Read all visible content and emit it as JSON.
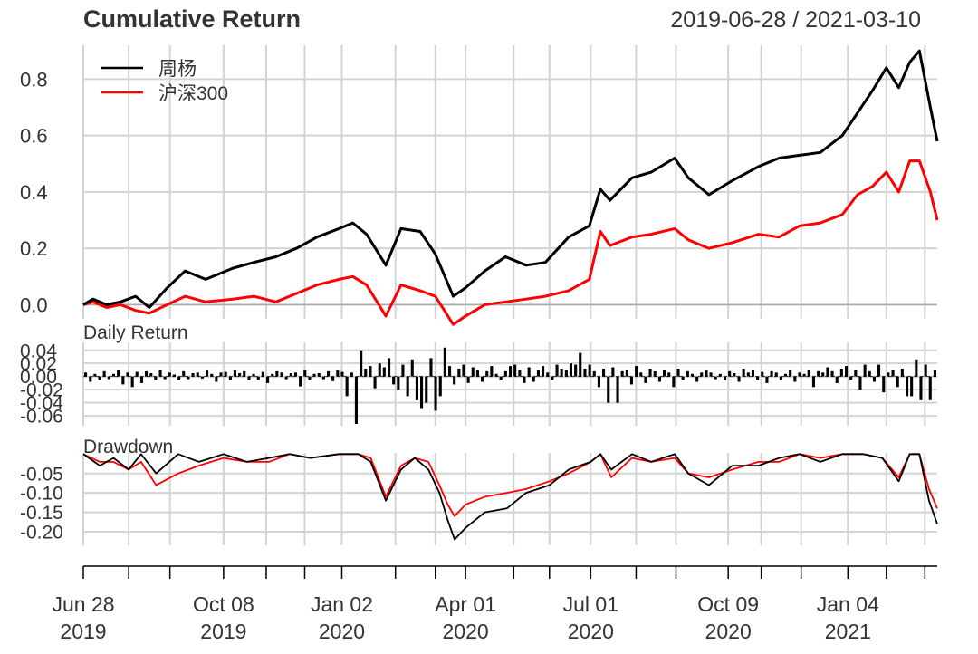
{
  "header": {
    "title": "Cumulative Return",
    "date_range": "2019-06-28 / 2021-03-10"
  },
  "colors": {
    "fund": "#000000",
    "benchmark": "#ff0000",
    "grid": "#d3d3d3",
    "text": "#333333"
  },
  "chart_data": [
    {
      "type": "line",
      "panel": "cumulative",
      "ylim": [
        -0.05,
        0.92
      ],
      "yticks": [
        "0.0",
        "0.2",
        "0.4",
        "0.6",
        "0.8"
      ],
      "ytick_values": [
        0,
        0.2,
        0.4,
        0.6,
        0.8
      ],
      "legend_placement": "top-left",
      "grid": true,
      "series": [
        {
          "name": "周杨",
          "x": [
            "2019-06-28",
            "2019-07-05",
            "2019-07-15",
            "2019-07-25",
            "2019-08-05",
            "2019-08-15",
            "2019-08-28",
            "2019-09-10",
            "2019-09-25",
            "2019-10-15",
            "2019-10-30",
            "2019-11-15",
            "2019-11-30",
            "2019-12-15",
            "2019-12-31",
            "2020-01-10",
            "2020-01-20",
            "2020-02-03",
            "2020-02-14",
            "2020-02-28",
            "2020-03-10",
            "2020-03-23",
            "2020-04-01",
            "2020-04-15",
            "2020-04-30",
            "2020-05-15",
            "2020-05-29",
            "2020-06-15",
            "2020-06-30",
            "2020-07-08",
            "2020-07-15",
            "2020-07-31",
            "2020-08-14",
            "2020-08-31",
            "2020-09-10",
            "2020-09-25",
            "2020-10-12",
            "2020-10-31",
            "2020-11-15",
            "2020-11-30",
            "2020-12-15",
            "2020-12-31",
            "2021-01-11",
            "2021-01-22",
            "2021-02-01",
            "2021-02-10",
            "2021-02-18",
            "2021-02-25",
            "2021-03-05",
            "2021-03-10"
          ],
          "values": [
            0.0,
            0.02,
            0.0,
            0.01,
            0.03,
            -0.01,
            0.06,
            0.12,
            0.09,
            0.13,
            0.15,
            0.17,
            0.2,
            0.24,
            0.27,
            0.29,
            0.25,
            0.14,
            0.27,
            0.26,
            0.18,
            0.03,
            0.06,
            0.12,
            0.17,
            0.14,
            0.15,
            0.24,
            0.28,
            0.41,
            0.37,
            0.45,
            0.47,
            0.52,
            0.45,
            0.39,
            0.44,
            0.49,
            0.52,
            0.53,
            0.54,
            0.6,
            0.68,
            0.76,
            0.84,
            0.77,
            0.86,
            0.9,
            0.7,
            0.58
          ]
        },
        {
          "name": "沪深300",
          "x": [
            "2019-06-28",
            "2019-07-05",
            "2019-07-15",
            "2019-07-25",
            "2019-08-05",
            "2019-08-15",
            "2019-08-28",
            "2019-09-10",
            "2019-09-25",
            "2019-10-15",
            "2019-10-30",
            "2019-11-15",
            "2019-11-30",
            "2019-12-15",
            "2019-12-31",
            "2020-01-10",
            "2020-01-20",
            "2020-02-03",
            "2020-02-14",
            "2020-02-28",
            "2020-03-10",
            "2020-03-23",
            "2020-04-01",
            "2020-04-15",
            "2020-04-30",
            "2020-05-15",
            "2020-05-29",
            "2020-06-15",
            "2020-06-30",
            "2020-07-08",
            "2020-07-15",
            "2020-07-31",
            "2020-08-14",
            "2020-08-31",
            "2020-09-10",
            "2020-09-25",
            "2020-10-12",
            "2020-10-31",
            "2020-11-15",
            "2020-11-30",
            "2020-12-15",
            "2020-12-31",
            "2021-01-11",
            "2021-01-22",
            "2021-02-01",
            "2021-02-10",
            "2021-02-18",
            "2021-02-25",
            "2021-03-05",
            "2021-03-10"
          ],
          "values": [
            0.0,
            0.01,
            -0.01,
            0.0,
            -0.02,
            -0.03,
            0.0,
            0.03,
            0.01,
            0.02,
            0.03,
            0.01,
            0.04,
            0.07,
            0.09,
            0.1,
            0.07,
            -0.04,
            0.07,
            0.05,
            0.03,
            -0.07,
            -0.04,
            0.0,
            0.01,
            0.02,
            0.03,
            0.05,
            0.09,
            0.26,
            0.21,
            0.24,
            0.25,
            0.27,
            0.23,
            0.2,
            0.22,
            0.25,
            0.24,
            0.28,
            0.29,
            0.32,
            0.39,
            0.42,
            0.47,
            0.4,
            0.51,
            0.51,
            0.4,
            0.3
          ]
        }
      ]
    },
    {
      "type": "bar",
      "panel": "daily_return",
      "title": "Daily Return",
      "ylim": [
        -0.075,
        0.052
      ],
      "yticks": [
        "0.04",
        "0.02",
        "0.00",
        "-0.02",
        "-0.04",
        "-0.06"
      ],
      "ytick_values": [
        0.04,
        0.02,
        0.0,
        -0.02,
        -0.04,
        -0.06
      ],
      "series": [
        {
          "name": "周杨",
          "values": [
            0.006,
            -0.008,
            0.004,
            -0.006,
            0.008,
            -0.004,
            0.004,
            0.01,
            -0.012,
            0.006,
            -0.016,
            0.007,
            -0.01,
            0.008,
            0.005,
            -0.006,
            0.01,
            -0.004,
            0.006,
            0.003,
            -0.006,
            0.008,
            -0.004,
            0.005,
            0.006,
            -0.003,
            0.009,
            0.004,
            -0.008,
            0.006,
            0.007,
            -0.006,
            0.01,
            0.005,
            0.008,
            -0.006,
            0.004,
            -0.005,
            0.007,
            -0.01,
            0.004,
            0.008,
            0.006,
            -0.004,
            0.005,
            0.006,
            -0.015,
            0.01,
            -0.006,
            0.004,
            0.005,
            -0.004,
            0.008,
            -0.007,
            0.009,
            0.007,
            -0.03,
            0.006,
            -0.072,
            0.04,
            0.012,
            0.016,
            -0.018,
            0.02,
            0.014,
            0.028,
            -0.012,
            -0.02,
            0.018,
            -0.03,
            0.026,
            -0.036,
            -0.048,
            -0.04,
            0.028,
            -0.052,
            -0.03,
            0.044,
            0.016,
            -0.012,
            0.012,
            0.018,
            -0.01,
            0.014,
            0.01,
            -0.008,
            0.008,
            0.016,
            0.004,
            -0.006,
            0.008,
            0.016,
            0.018,
            0.01,
            -0.01,
            0.014,
            -0.008,
            0.009,
            0.016,
            0.006,
            -0.006,
            0.018,
            0.012,
            0.01,
            0.02,
            0.018,
            0.036,
            0.012,
            0.018,
            0.008,
            -0.016,
            0.012,
            -0.04,
            0.014,
            -0.04,
            0.008,
            0.01,
            -0.012,
            0.016,
            0.006,
            -0.01,
            0.012,
            0.008,
            -0.008,
            0.01,
            0.006,
            -0.016,
            0.012,
            -0.006,
            0.008,
            0.004,
            -0.008,
            0.006,
            0.009,
            0.006,
            -0.004,
            0.004,
            -0.006,
            0.008,
            0.005,
            -0.008,
            0.012,
            0.006,
            0.01,
            -0.006,
            0.007,
            -0.01,
            0.008,
            0.006,
            -0.006,
            0.004,
            0.01,
            -0.008,
            0.006,
            0.004,
            0.01,
            -0.016,
            0.008,
            0.006,
            0.014,
            0.008,
            -0.01,
            0.012,
            0.016,
            -0.006,
            0.01,
            -0.02,
            0.018,
            0.008,
            -0.008,
            0.018,
            -0.024,
            0.006,
            0.01,
            -0.016,
            0.012,
            -0.03,
            -0.03,
            0.026,
            -0.036,
            0.018,
            -0.036,
            0.01
          ]
        }
      ]
    },
    {
      "type": "line",
      "panel": "drawdown",
      "title": "Drawdown",
      "ylim": [
        -0.235,
        0.003
      ],
      "yticks": [
        "-0.05",
        "-0.10",
        "-0.15",
        "-0.20"
      ],
      "ytick_values": [
        -0.05,
        -0.1,
        -0.15,
        -0.2
      ],
      "series": [
        {
          "name": "周杨",
          "x": [
            "2019-06-28",
            "2019-07-10",
            "2019-07-20",
            "2019-07-31",
            "2019-08-09",
            "2019-08-20",
            "2019-09-05",
            "2019-09-20",
            "2019-10-08",
            "2019-10-25",
            "2019-11-10",
            "2019-11-25",
            "2019-12-10",
            "2019-12-31",
            "2020-01-14",
            "2020-01-23",
            "2020-02-03",
            "2020-02-14",
            "2020-02-24",
            "2020-03-05",
            "2020-03-13",
            "2020-03-19",
            "2020-03-24",
            "2020-04-01",
            "2020-04-15",
            "2020-05-01",
            "2020-05-15",
            "2020-06-01",
            "2020-06-15",
            "2020-07-01",
            "2020-07-08",
            "2020-07-16",
            "2020-07-31",
            "2020-08-14",
            "2020-08-31",
            "2020-09-10",
            "2020-09-25",
            "2020-10-12",
            "2020-10-31",
            "2020-11-15",
            "2020-11-30",
            "2020-12-15",
            "2020-12-31",
            "2021-01-15",
            "2021-01-29",
            "2021-02-10",
            "2021-02-18",
            "2021-02-25",
            "2021-03-04",
            "2021-03-10"
          ],
          "values": [
            0.0,
            -0.03,
            -0.01,
            -0.04,
            0.0,
            -0.05,
            0.0,
            -0.02,
            0.0,
            -0.02,
            -0.01,
            0.0,
            -0.01,
            0.0,
            0.0,
            -0.02,
            -0.12,
            -0.04,
            -0.01,
            -0.04,
            -0.1,
            -0.17,
            -0.22,
            -0.19,
            -0.15,
            -0.14,
            -0.1,
            -0.08,
            -0.04,
            -0.02,
            0.0,
            -0.04,
            0.0,
            -0.02,
            0.0,
            -0.05,
            -0.08,
            -0.03,
            -0.03,
            -0.01,
            0.0,
            -0.02,
            0.0,
            0.0,
            -0.01,
            -0.07,
            0.0,
            0.0,
            -0.12,
            -0.18
          ]
        },
        {
          "name": "沪深300",
          "x": [
            "2019-06-28",
            "2019-07-10",
            "2019-07-20",
            "2019-07-31",
            "2019-08-09",
            "2019-08-20",
            "2019-09-05",
            "2019-09-20",
            "2019-10-08",
            "2019-10-25",
            "2019-11-10",
            "2019-11-25",
            "2019-12-10",
            "2019-12-31",
            "2020-01-14",
            "2020-01-23",
            "2020-02-03",
            "2020-02-14",
            "2020-02-24",
            "2020-03-05",
            "2020-03-13",
            "2020-03-19",
            "2020-03-24",
            "2020-04-01",
            "2020-04-15",
            "2020-05-01",
            "2020-05-15",
            "2020-06-01",
            "2020-06-15",
            "2020-07-01",
            "2020-07-08",
            "2020-07-16",
            "2020-07-31",
            "2020-08-14",
            "2020-08-31",
            "2020-09-10",
            "2020-09-25",
            "2020-10-12",
            "2020-10-31",
            "2020-11-15",
            "2020-11-30",
            "2020-12-15",
            "2020-12-31",
            "2021-01-15",
            "2021-01-29",
            "2021-02-10",
            "2021-02-18",
            "2021-02-25",
            "2021-03-04",
            "2021-03-10"
          ],
          "values": [
            0.0,
            -0.02,
            -0.02,
            -0.04,
            -0.02,
            -0.08,
            -0.05,
            -0.03,
            -0.01,
            -0.02,
            -0.02,
            0.0,
            -0.01,
            0.0,
            0.0,
            -0.01,
            -0.11,
            -0.03,
            -0.01,
            -0.02,
            -0.08,
            -0.13,
            -0.16,
            -0.13,
            -0.11,
            -0.1,
            -0.09,
            -0.07,
            -0.05,
            -0.02,
            0.0,
            -0.06,
            -0.01,
            -0.02,
            -0.01,
            -0.05,
            -0.06,
            -0.04,
            -0.02,
            -0.02,
            0.0,
            -0.01,
            0.0,
            0.0,
            -0.01,
            -0.06,
            0.0,
            0.0,
            -0.09,
            -0.14
          ]
        }
      ]
    }
  ],
  "x_axis": {
    "start": "2019-06-28",
    "end": "2021-03-10",
    "grid_dates": [
      "2019-06-28",
      "2019-07-31",
      "2019-08-30",
      "2019-10-08",
      "2019-11-08",
      "2019-12-06",
      "2020-01-02",
      "2020-02-10",
      "2020-03-10",
      "2020-04-01",
      "2020-05-06",
      "2020-06-01",
      "2020-07-01",
      "2020-08-03",
      "2020-09-01",
      "2020-10-09",
      "2020-11-02",
      "2020-12-01",
      "2021-01-04",
      "2021-02-01",
      "2021-03-01"
    ],
    "labels": [
      {
        "date": "2019-06-28",
        "line1": "Jun 28",
        "line2": "2019"
      },
      {
        "date": "2019-10-08",
        "line1": "Oct 08",
        "line2": "2019"
      },
      {
        "date": "2020-01-02",
        "line1": "Jan 02",
        "line2": "2020"
      },
      {
        "date": "2020-04-01",
        "line1": "Apr 01",
        "line2": "2020"
      },
      {
        "date": "2020-07-01",
        "line1": "Jul 01",
        "line2": "2020"
      },
      {
        "date": "2020-10-09",
        "line1": "Oct 09",
        "line2": "2020"
      },
      {
        "date": "2021-01-04",
        "line1": "Jan 04",
        "line2": "2021"
      }
    ]
  }
}
